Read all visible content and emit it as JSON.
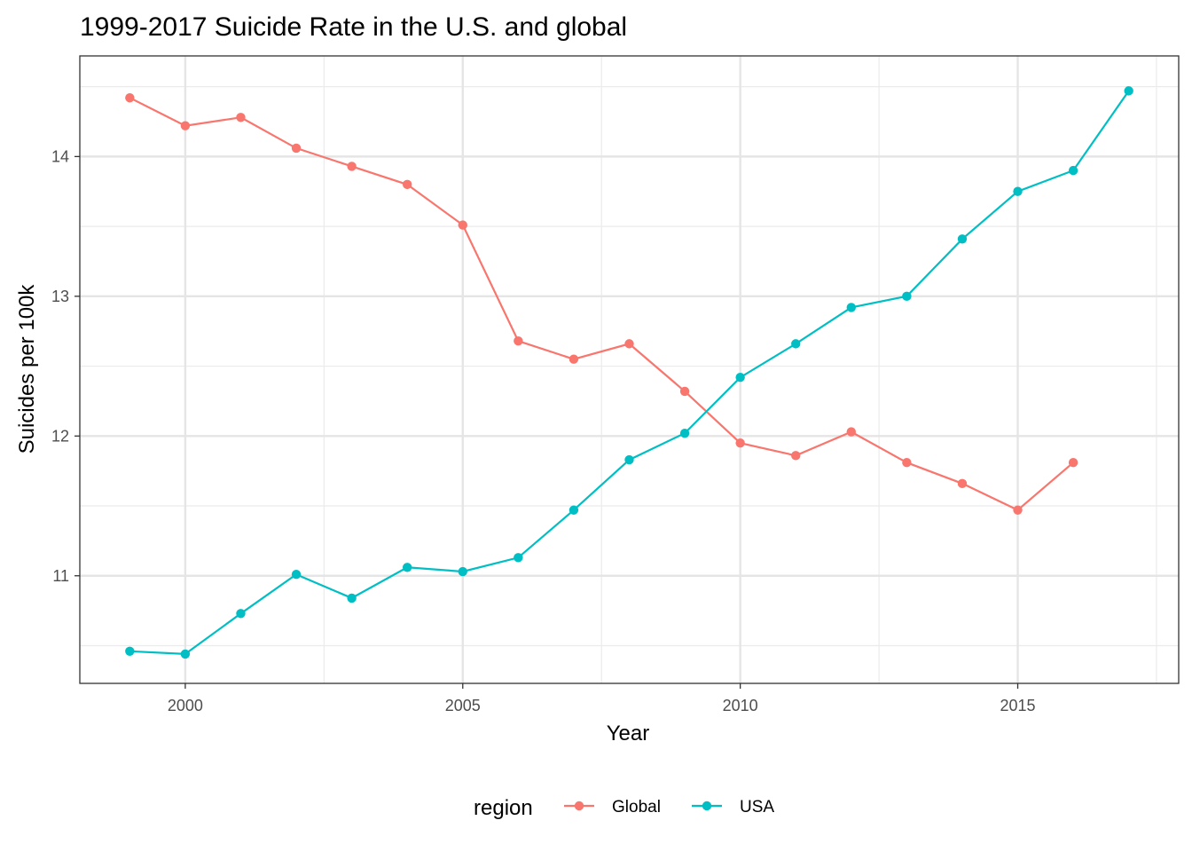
{
  "chart_data": {
    "type": "line",
    "title": "1999-2017 Suicide Rate in the U.S. and global",
    "xlabel": "Year",
    "ylabel": "Suicides per 100k",
    "xlim": [
      1998.1,
      2017.9
    ],
    "ylim": [
      10.23,
      14.72
    ],
    "x_ticks": [
      2000,
      2005,
      2010,
      2015
    ],
    "x_minor_ticks": [
      2002.5,
      2007.5,
      2012.5,
      2017.5
    ],
    "y_ticks": [
      11,
      12,
      13,
      14
    ],
    "y_minor_ticks": [
      10.5,
      11.5,
      12.5,
      13.5,
      14.5
    ],
    "grid": true,
    "legend": {
      "title": "region",
      "position": "bottom"
    },
    "series": [
      {
        "name": "Global",
        "color": "#F8766D",
        "x": [
          1999,
          2000,
          2001,
          2002,
          2003,
          2004,
          2005,
          2006,
          2007,
          2008,
          2009,
          2010,
          2011,
          2012,
          2013,
          2014,
          2015,
          2016
        ],
        "y": [
          14.42,
          14.22,
          14.28,
          14.06,
          13.93,
          13.8,
          13.51,
          12.68,
          12.55,
          12.66,
          12.32,
          11.95,
          11.86,
          12.03,
          11.81,
          11.66,
          11.47,
          11.81
        ]
      },
      {
        "name": "USA",
        "color": "#00BFC4",
        "x": [
          1999,
          2000,
          2001,
          2002,
          2003,
          2004,
          2005,
          2006,
          2007,
          2008,
          2009,
          2010,
          2011,
          2012,
          2013,
          2014,
          2015,
          2016,
          2017
        ],
        "y": [
          10.46,
          10.44,
          10.73,
          11.01,
          10.84,
          11.06,
          11.03,
          11.13,
          11.47,
          11.83,
          12.02,
          12.42,
          12.66,
          12.92,
          13.0,
          13.41,
          13.75,
          13.9,
          14.47
        ]
      }
    ]
  }
}
